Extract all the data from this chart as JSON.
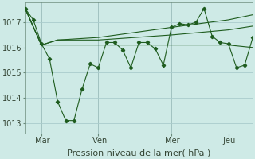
{
  "background_color": "#ceeae6",
  "grid_color": "#aacccc",
  "line_color": "#1e5c1e",
  "xlabel": "Pression niveau de la mer( hPa )",
  "xlabel_fontsize": 8,
  "yticks": [
    1013,
    1014,
    1015,
    1016,
    1017
  ],
  "xtick_labels": [
    " Mar",
    " Ven",
    " Mer",
    " Jeu"
  ],
  "ylim": [
    1012.6,
    1017.8
  ],
  "xlim": [
    0,
    56
  ],
  "xtick_positions": [
    4,
    18,
    36,
    50
  ],
  "vline_positions": [
    4,
    18,
    36,
    50
  ],
  "series": [
    {
      "x": [
        0,
        4,
        8,
        18,
        36,
        50,
        56
      ],
      "y": [
        1017.55,
        1016.1,
        1016.1,
        1016.1,
        1016.1,
        1016.1,
        1016.0
      ]
    },
    {
      "x": [
        0,
        4,
        8,
        18,
        36,
        50,
        56
      ],
      "y": [
        1017.55,
        1016.1,
        1016.3,
        1016.3,
        1016.5,
        1016.7,
        1016.85
      ]
    },
    {
      "x": [
        0,
        4,
        8,
        18,
        36,
        50,
        56
      ],
      "y": [
        1017.55,
        1016.1,
        1016.3,
        1016.4,
        1016.8,
        1017.1,
        1017.3
      ]
    },
    {
      "x": [
        0,
        2,
        4,
        6,
        8,
        10,
        12,
        14,
        16,
        18,
        20,
        22,
        24,
        26,
        28,
        30,
        32,
        34,
        36,
        38,
        40,
        42,
        44,
        46,
        48,
        50,
        52,
        54,
        56
      ],
      "y": [
        1017.55,
        1017.1,
        1016.15,
        1015.55,
        1013.85,
        1013.1,
        1013.1,
        1014.35,
        1015.35,
        1015.2,
        1016.2,
        1016.2,
        1015.9,
        1015.2,
        1016.2,
        1016.2,
        1015.95,
        1015.3,
        1016.8,
        1016.95,
        1016.9,
        1017.0,
        1017.55,
        1016.45,
        1016.2,
        1016.15,
        1015.2,
        1015.3,
        1016.4
      ]
    }
  ]
}
